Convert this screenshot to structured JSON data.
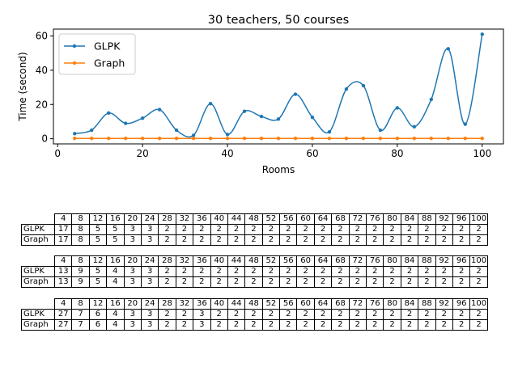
{
  "chart_data": {
    "type": "line",
    "title": "30 teachers, 50 courses",
    "xlabel": "Rooms",
    "ylabel": "Time (second)",
    "xlim": [
      -1,
      105
    ],
    "ylim": [
      -3,
      64
    ],
    "xticks": [
      0,
      20,
      40,
      60,
      80,
      100
    ],
    "yticks": [
      0,
      20,
      40,
      60
    ],
    "grid": false,
    "legend_position": "top-left",
    "x": [
      4,
      8,
      12,
      16,
      20,
      24,
      28,
      32,
      36,
      40,
      44,
      48,
      52,
      56,
      60,
      64,
      68,
      72,
      76,
      80,
      84,
      88,
      92,
      96,
      100
    ],
    "series": [
      {
        "name": "GLPK",
        "color": "#1f77b4",
        "values": [
          3,
          5,
          15,
          9,
          12,
          17,
          5,
          2,
          20.5,
          2.5,
          16,
          13,
          11.5,
          26,
          12.5,
          4,
          29,
          31,
          5,
          18,
          7,
          23,
          52.5,
          8.5,
          61
        ]
      },
      {
        "name": "Graph",
        "color": "#ff7f0e",
        "values": [
          0.2,
          0.2,
          0.2,
          0.2,
          0.2,
          0.2,
          0.2,
          0.2,
          0.2,
          0.2,
          0.2,
          0.2,
          0.2,
          0.2,
          0.2,
          0.2,
          0.2,
          0.2,
          0.2,
          0.2,
          0.2,
          0.2,
          0.2,
          0.2,
          0.2
        ]
      }
    ]
  },
  "tables": [
    {
      "header": [
        "4",
        "8",
        "12",
        "16",
        "20",
        "24",
        "28",
        "32",
        "36",
        "40",
        "44",
        "48",
        "52",
        "56",
        "60",
        "64",
        "68",
        "72",
        "76",
        "80",
        "84",
        "88",
        "92",
        "96",
        "100"
      ],
      "rows": [
        {
          "label": "GLPK",
          "cells": [
            "17",
            "8",
            "5",
            "5",
            "3",
            "3",
            "2",
            "2",
            "2",
            "2",
            "2",
            "2",
            "2",
            "2",
            "2",
            "2",
            "2",
            "2",
            "2",
            "2",
            "2",
            "2",
            "2",
            "2",
            "2"
          ]
        },
        {
          "label": "Graph",
          "cells": [
            "17",
            "8",
            "5",
            "5",
            "3",
            "3",
            "2",
            "2",
            "2",
            "2",
            "2",
            "2",
            "2",
            "2",
            "2",
            "2",
            "2",
            "2",
            "2",
            "2",
            "2",
            "2",
            "2",
            "2",
            "2"
          ]
        }
      ]
    },
    {
      "header": [
        "4",
        "8",
        "12",
        "16",
        "20",
        "24",
        "28",
        "32",
        "36",
        "40",
        "44",
        "48",
        "52",
        "56",
        "60",
        "64",
        "68",
        "72",
        "76",
        "80",
        "84",
        "88",
        "92",
        "96",
        "100"
      ],
      "rows": [
        {
          "label": "GLPK",
          "cells": [
            "13",
            "9",
            "5",
            "4",
            "3",
            "3",
            "2",
            "2",
            "2",
            "2",
            "2",
            "2",
            "2",
            "2",
            "2",
            "2",
            "2",
            "2",
            "2",
            "2",
            "2",
            "2",
            "2",
            "2",
            "2"
          ]
        },
        {
          "label": "Graph",
          "cells": [
            "13",
            "9",
            "5",
            "4",
            "3",
            "3",
            "2",
            "2",
            "2",
            "2",
            "2",
            "2",
            "2",
            "2",
            "2",
            "2",
            "2",
            "2",
            "2",
            "2",
            "2",
            "2",
            "2",
            "2",
            "2"
          ]
        }
      ]
    },
    {
      "header": [
        "4",
        "8",
        "12",
        "16",
        "20",
        "24",
        "28",
        "32",
        "36",
        "40",
        "44",
        "48",
        "52",
        "56",
        "60",
        "64",
        "68",
        "72",
        "76",
        "80",
        "84",
        "88",
        "92",
        "96",
        "100"
      ],
      "rows": [
        {
          "label": "GLPK",
          "cells": [
            "27",
            "7",
            "6",
            "4",
            "3",
            "3",
            "2",
            "2",
            "3",
            "2",
            "2",
            "2",
            "2",
            "2",
            "2",
            "2",
            "2",
            "2",
            "2",
            "2",
            "2",
            "2",
            "2",
            "2",
            "2"
          ]
        },
        {
          "label": "Graph",
          "cells": [
            "27",
            "7",
            "6",
            "4",
            "3",
            "3",
            "2",
            "2",
            "3",
            "2",
            "2",
            "2",
            "2",
            "2",
            "2",
            "2",
            "2",
            "2",
            "2",
            "2",
            "2",
            "2",
            "2",
            "2",
            "2"
          ]
        }
      ]
    }
  ]
}
